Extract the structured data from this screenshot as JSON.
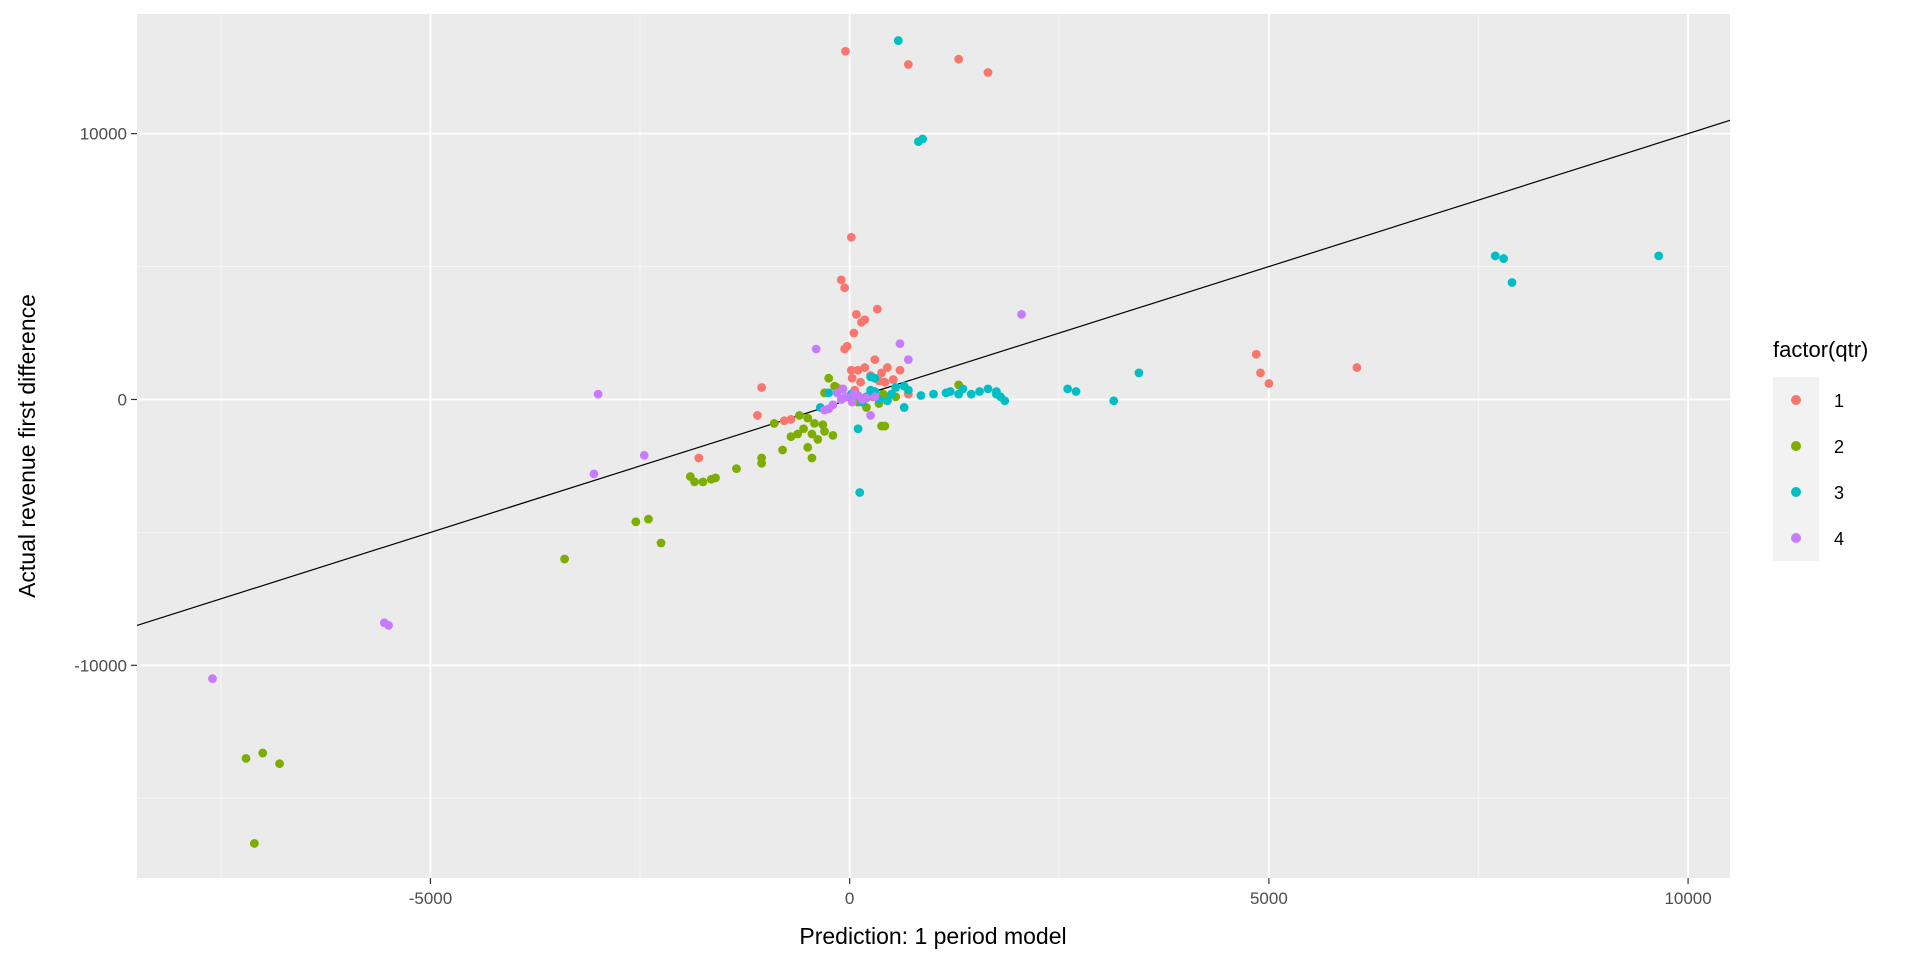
{
  "chart_data": {
    "type": "scatter",
    "xlabel": "Prediction: 1 period model",
    "ylabel": "Actual revenue first difference",
    "xlim": [
      -8500,
      10500
    ],
    "ylim": [
      -18000,
      14500
    ],
    "x_ticks": [
      -5000,
      0,
      5000,
      10000
    ],
    "x_tick_labels": [
      "-5000",
      "0",
      "5000",
      "10000"
    ],
    "y_ticks": [
      -10000,
      0,
      10000
    ],
    "y_tick_labels": [
      "-10000",
      "0",
      "10000"
    ],
    "grid": true,
    "legend_title": "factor(qtr)",
    "legend_position": "right",
    "reference_line": {
      "slope": 1,
      "intercept": 0,
      "color": "#000000"
    },
    "series": [
      {
        "name": "1",
        "color": "#F8766D",
        "points": [
          [
            -50,
            13100
          ],
          [
            700,
            12600
          ],
          [
            1300,
            12800
          ],
          [
            1650,
            12300
          ],
          [
            20,
            6100
          ],
          [
            -100,
            4500
          ],
          [
            -60,
            4200
          ],
          [
            330,
            3400
          ],
          [
            80,
            3200
          ],
          [
            180,
            3000
          ],
          [
            140,
            2900
          ],
          [
            50,
            2500
          ],
          [
            -30,
            2000
          ],
          [
            -60,
            1900
          ],
          [
            300,
            1500
          ],
          [
            450,
            1200
          ],
          [
            20,
            1100
          ],
          [
            100,
            1100
          ],
          [
            180,
            1200
          ],
          [
            380,
            1000
          ],
          [
            600,
            1100
          ],
          [
            250,
            900
          ],
          [
            30,
            800
          ],
          [
            130,
            650
          ],
          [
            350,
            700
          ],
          [
            420,
            650
          ],
          [
            520,
            750
          ],
          [
            -1050,
            450
          ],
          [
            -1100,
            -600
          ],
          [
            -700,
            -750
          ],
          [
            -780,
            -800
          ],
          [
            -1800,
            -2200
          ],
          [
            4850,
            1700
          ],
          [
            4900,
            1000
          ],
          [
            5000,
            600
          ],
          [
            6050,
            1200
          ],
          [
            700,
            200
          ],
          [
            60,
            350
          ],
          [
            -150,
            450
          ]
        ]
      },
      {
        "name": "2",
        "color": "#7CAE00",
        "points": [
          [
            -250,
            800
          ],
          [
            -180,
            500
          ],
          [
            -300,
            250
          ],
          [
            100,
            -100
          ],
          [
            200,
            -300
          ],
          [
            350,
            -150
          ],
          [
            450,
            0
          ],
          [
            550,
            100
          ],
          [
            400,
            200
          ],
          [
            1300,
            550
          ],
          [
            280,
            100
          ],
          [
            -600,
            -600
          ],
          [
            -500,
            -700
          ],
          [
            -420,
            -900
          ],
          [
            -320,
            -950
          ],
          [
            -550,
            -1100
          ],
          [
            -450,
            -1300
          ],
          [
            -620,
            -1300
          ],
          [
            -700,
            -1400
          ],
          [
            -380,
            -1500
          ],
          [
            -500,
            -1800
          ],
          [
            -450,
            -2200
          ],
          [
            -900,
            -900
          ],
          [
            -800,
            -1900
          ],
          [
            -1050,
            -2200
          ],
          [
            -1050,
            -2400
          ],
          [
            -300,
            -1200
          ],
          [
            -200,
            -1350
          ],
          [
            380,
            -1000
          ],
          [
            420,
            -1000
          ],
          [
            -1350,
            -2600
          ],
          [
            -1600,
            -2950
          ],
          [
            -1650,
            -3000
          ],
          [
            -1750,
            -3100
          ],
          [
            -1850,
            -3100
          ],
          [
            -1900,
            -2900
          ],
          [
            -2400,
            -4500
          ],
          [
            -2550,
            -4600
          ],
          [
            -2250,
            -5400
          ],
          [
            -3400,
            -6000
          ],
          [
            -7000,
            -13300
          ],
          [
            -7200,
            -13500
          ],
          [
            -6800,
            -13700
          ],
          [
            -7100,
            -16700
          ]
        ]
      },
      {
        "name": "3",
        "color": "#00BFC4",
        "points": [
          [
            580,
            13500
          ],
          [
            820,
            9700
          ],
          [
            870,
            9800
          ],
          [
            7700,
            5400
          ],
          [
            7800,
            5300
          ],
          [
            7900,
            4400
          ],
          [
            9650,
            5400
          ],
          [
            3450,
            1000
          ],
          [
            2600,
            400
          ],
          [
            2700,
            300
          ],
          [
            3150,
            -50
          ],
          [
            1150,
            250
          ],
          [
            1200,
            300
          ],
          [
            1350,
            400
          ],
          [
            1300,
            200
          ],
          [
            1450,
            200
          ],
          [
            1550,
            300
          ],
          [
            1650,
            400
          ],
          [
            1750,
            300
          ],
          [
            1800,
            100
          ],
          [
            1850,
            -50
          ],
          [
            1750,
            200
          ],
          [
            1000,
            200
          ],
          [
            850,
            150
          ],
          [
            700,
            350
          ],
          [
            550,
            450
          ],
          [
            650,
            500
          ],
          [
            300,
            300
          ],
          [
            250,
            350
          ],
          [
            200,
            100
          ],
          [
            350,
            0
          ],
          [
            450,
            -50
          ],
          [
            500,
            200
          ],
          [
            150,
            -100
          ],
          [
            650,
            -300
          ],
          [
            -350,
            -300
          ],
          [
            -250,
            250
          ],
          [
            100,
            -1100
          ],
          [
            120,
            -3500
          ],
          [
            250,
            850
          ],
          [
            300,
            800
          ],
          [
            20,
            200
          ],
          [
            -50,
            100
          ]
        ]
      },
      {
        "name": "4",
        "color": "#C77CFF",
        "points": [
          [
            -7600,
            -10500
          ],
          [
            -5550,
            -8400
          ],
          [
            -5500,
            -8500
          ],
          [
            -3000,
            200
          ],
          [
            -3050,
            -2800
          ],
          [
            -2450,
            -2100
          ],
          [
            -400,
            1900
          ],
          [
            2050,
            3200
          ],
          [
            600,
            2100
          ],
          [
            700,
            1500
          ],
          [
            -150,
            250
          ],
          [
            -50,
            100
          ],
          [
            -100,
            0
          ],
          [
            50,
            200
          ],
          [
            100,
            150
          ],
          [
            150,
            0
          ],
          [
            30,
            -100
          ],
          [
            200,
            50
          ],
          [
            250,
            -600
          ],
          [
            -250,
            -350
          ],
          [
            -200,
            -200
          ],
          [
            -300,
            -400
          ],
          [
            -80,
            400
          ],
          [
            300,
            100
          ]
        ]
      }
    ]
  }
}
